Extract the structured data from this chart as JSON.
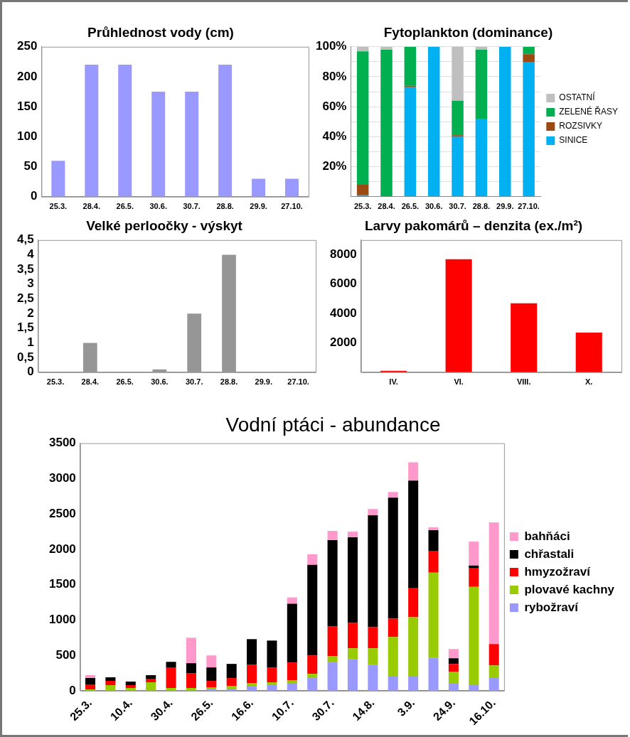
{
  "chart_data": [
    {
      "type": "bar",
      "title": "Průhlednost vody (cm)",
      "categories": [
        "25.3.",
        "28.4.",
        "26.5.",
        "30.6.",
        "30.7.",
        "28.8.",
        "29.9.",
        "27.10."
      ],
      "values": [
        60,
        220,
        220,
        175,
        175,
        220,
        30,
        30
      ],
      "color": "#9999ff",
      "ylim": [
        0,
        250
      ],
      "yticks": [
        0,
        50,
        100,
        150,
        200,
        250
      ]
    },
    {
      "type": "bar",
      "title": "Fytoplankton (dominance)",
      "stacked": true,
      "categories": [
        "25.3.",
        "28.4.",
        "26.5.",
        "30.6.",
        "30.7.",
        "28.8.",
        "29.9.",
        "27.10."
      ],
      "series": [
        {
          "name": "SINICE",
          "color": "#00b0f0",
          "values": [
            1,
            0,
            73,
            100,
            40,
            52,
            100,
            90
          ]
        },
        {
          "name": "ROZSIVKY",
          "color": "#9c4a12",
          "values": [
            7,
            0,
            1,
            0,
            1,
            0,
            0,
            5
          ]
        },
        {
          "name": "ZELENÉ ŘASY",
          "color": "#00b050",
          "values": [
            89,
            98,
            26,
            0,
            23,
            46,
            0,
            5
          ]
        },
        {
          "name": "OSTATNÍ",
          "color": "#bfbfbf",
          "values": [
            3,
            2,
            0,
            0,
            36,
            2,
            0,
            0
          ]
        }
      ],
      "ylim": [
        0,
        100
      ],
      "yticks": [
        {
          "value": 0,
          "label": null
        },
        {
          "value": 10,
          "label": null
        },
        {
          "value": 20,
          "label": "20%"
        },
        {
          "value": 30,
          "label": null
        },
        {
          "value": 40,
          "label": "40%"
        },
        {
          "value": 50,
          "label": null
        },
        {
          "value": 60,
          "label": "60%"
        },
        {
          "value": 70,
          "label": null
        },
        {
          "value": 80,
          "label": "80%"
        },
        {
          "value": 90,
          "label": null
        },
        {
          "value": 100,
          "label": "100%"
        }
      ],
      "grid": "y",
      "legend": "right"
    },
    {
      "type": "bar",
      "title": "Velké perloočky - výskyt",
      "categories": [
        "25.3.",
        "28.4.",
        "26.5.",
        "30.6.",
        "30.7.",
        "28.8.",
        "29.9.",
        "27.10."
      ],
      "values": [
        0,
        1,
        0,
        0.1,
        2,
        4,
        0,
        0
      ],
      "color": "#969696",
      "ylim": [
        0,
        4.5
      ],
      "yticks": [
        0,
        {
          "value": 0.5,
          "label": "0,5"
        },
        1,
        {
          "value": 1.5,
          "label": "1,5"
        },
        2,
        {
          "value": 2.5,
          "label": "2,5"
        },
        3,
        {
          "value": 3.5,
          "label": "3,5"
        },
        4,
        {
          "value": 4.5,
          "label": "4,5"
        }
      ]
    },
    {
      "type": "bar",
      "title": "Larvy pakomárů – denzita (ex./m²)",
      "categories": [
        "IV.",
        "VI.",
        "VIII.",
        "X."
      ],
      "values": [
        100,
        7700,
        4700,
        2700
      ],
      "color": "#ff0000",
      "ylim": [
        0,
        9000
      ],
      "yticks": [
        {
          "value": 0,
          "label": null
        },
        2000,
        4000,
        6000,
        8000
      ]
    },
    {
      "type": "bar",
      "title": "Vodní ptáci - abundance",
      "stacked": true,
      "categories": [
        "25.3.",
        null,
        "10.4.",
        null,
        "30.4.",
        null,
        "26.5.",
        null,
        "16.6.",
        null,
        "10.7.",
        null,
        "30.7.",
        null,
        "14.8.",
        null,
        "3.9.",
        null,
        "24.9.",
        null,
        "16.10."
      ],
      "series": [
        {
          "name": "rybožraví",
          "color": "#9999ff",
          "values": [
            0,
            10,
            10,
            10,
            10,
            10,
            30,
            30,
            70,
            80,
            100,
            180,
            400,
            450,
            370,
            210,
            200,
            470,
            110,
            80,
            180
          ]
        },
        {
          "name": "plovavé kachny",
          "color": "#99cc00",
          "values": [
            20,
            70,
            30,
            110,
            30,
            30,
            20,
            40,
            40,
            40,
            50,
            60,
            90,
            150,
            230,
            550,
            840,
            1200,
            160,
            1390,
            180
          ]
        },
        {
          "name": "hmyzožraví",
          "color": "#ff0000",
          "values": [
            70,
            60,
            40,
            50,
            290,
            210,
            90,
            110,
            260,
            210,
            250,
            260,
            420,
            360,
            300,
            260,
            410,
            310,
            110,
            260,
            300
          ]
        },
        {
          "name": "chřastali",
          "color": "#000000",
          "values": [
            90,
            50,
            50,
            50,
            80,
            140,
            190,
            200,
            360,
            380,
            830,
            1280,
            1220,
            1210,
            1580,
            1710,
            1520,
            290,
            80,
            40,
            0
          ]
        },
        {
          "name": "bahňáci",
          "color": "#ff99cc",
          "values": [
            40,
            0,
            0,
            0,
            0,
            360,
            170,
            0,
            0,
            0,
            90,
            150,
            130,
            80,
            90,
            80,
            260,
            40,
            130,
            340,
            1720
          ]
        }
      ],
      "ylim": [
        0,
        3500
      ],
      "yticks": [
        0,
        500,
        1000,
        1500,
        2000,
        2500,
        3000,
        3500
      ],
      "legend": "right"
    }
  ]
}
